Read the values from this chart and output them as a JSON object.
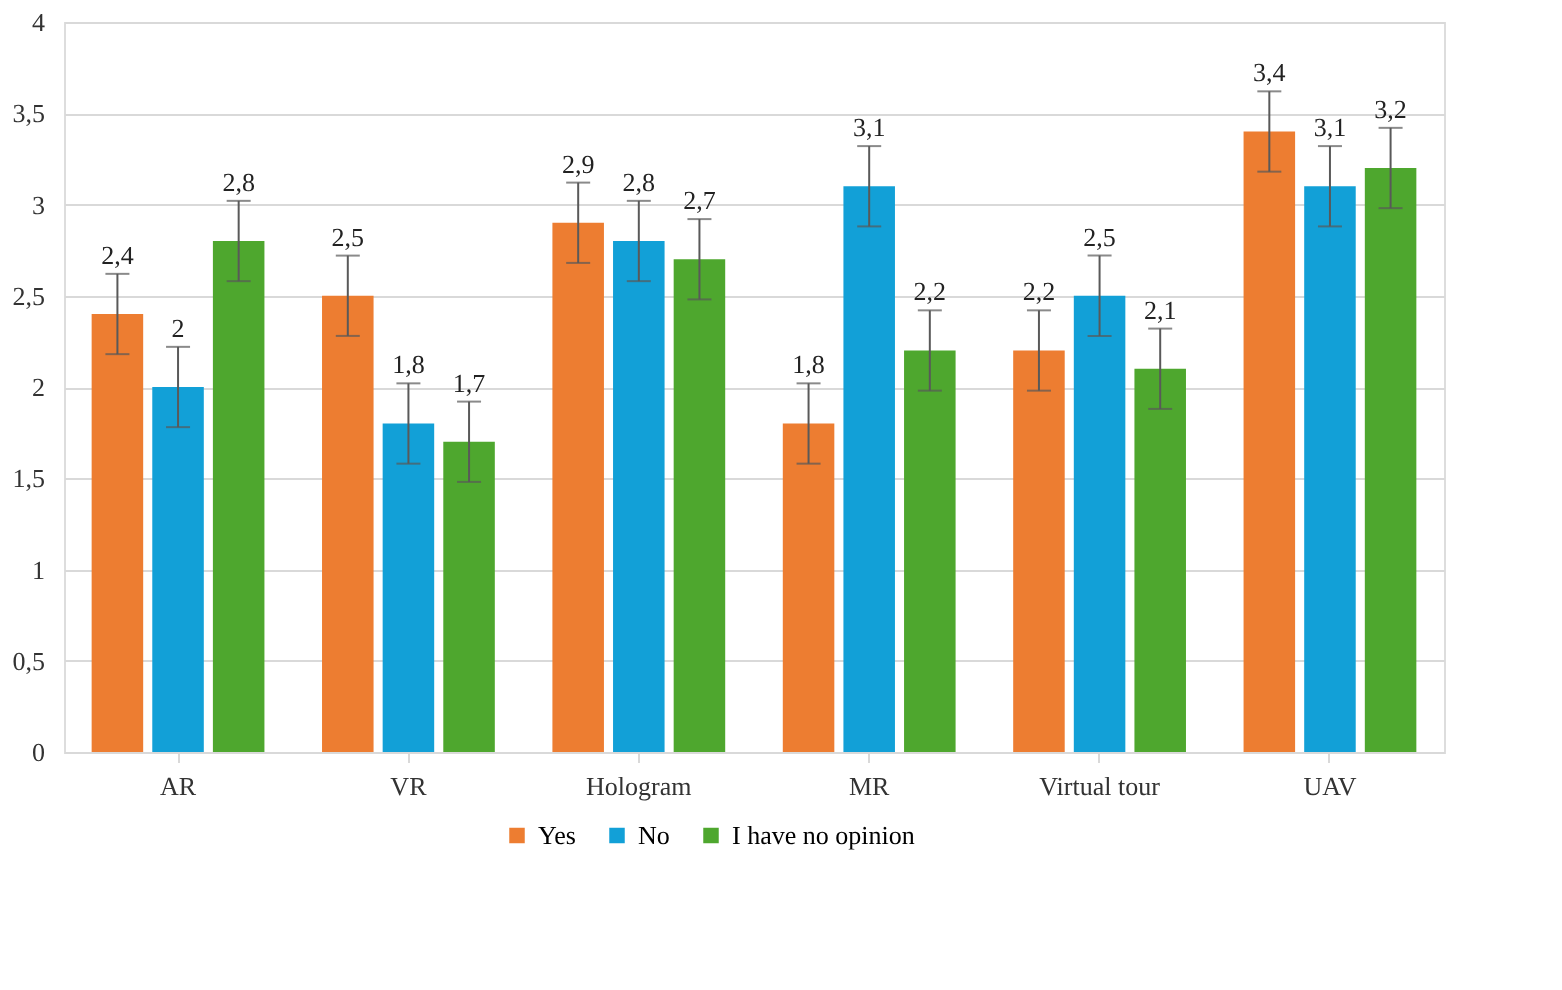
{
  "chart_data": {
    "type": "bar",
    "categories": [
      "AR",
      "VR",
      "Hologram",
      "MR",
      "Virtual tour",
      "UAV"
    ],
    "series": [
      {
        "name": "Yes",
        "color": "#ed7d31",
        "values": [
          2.4,
          2.5,
          2.9,
          1.8,
          2.2,
          3.4
        ],
        "value_labels": [
          "2,4",
          "2,5",
          "2,9",
          "1,8",
          "2,2",
          "3,4"
        ],
        "errors": [
          0.22,
          0.22,
          0.22,
          0.22,
          0.22,
          0.22
        ]
      },
      {
        "name": "No",
        "color": "#12a0d7",
        "values": [
          2.0,
          1.8,
          2.8,
          3.1,
          2.5,
          3.1
        ],
        "value_labels": [
          "2",
          "1,8",
          "2,8",
          "3,1",
          "2,5",
          "3,1"
        ],
        "errors": [
          0.22,
          0.22,
          0.22,
          0.22,
          0.22,
          0.22
        ]
      },
      {
        "name": "I have no opinion",
        "color": "#4ea72e",
        "values": [
          2.8,
          1.7,
          2.7,
          2.2,
          2.1,
          3.2
        ],
        "value_labels": [
          "2,8",
          "1,7",
          "2,7",
          "2,2",
          "2,1",
          "3,2"
        ],
        "errors": [
          0.22,
          0.22,
          0.22,
          0.22,
          0.22,
          0.22
        ]
      }
    ],
    "ylim": [
      0,
      4
    ],
    "yticks": [
      0,
      {
        "value": 0.5,
        "label": "0,5"
      },
      1,
      {
        "value": 1.5,
        "label": "1,5"
      },
      2,
      {
        "value": 2.5,
        "label": "2,5"
      },
      3,
      {
        "value": 3.5,
        "label": "3,5"
      },
      4
    ],
    "grid": "y",
    "legend": "bottom"
  }
}
